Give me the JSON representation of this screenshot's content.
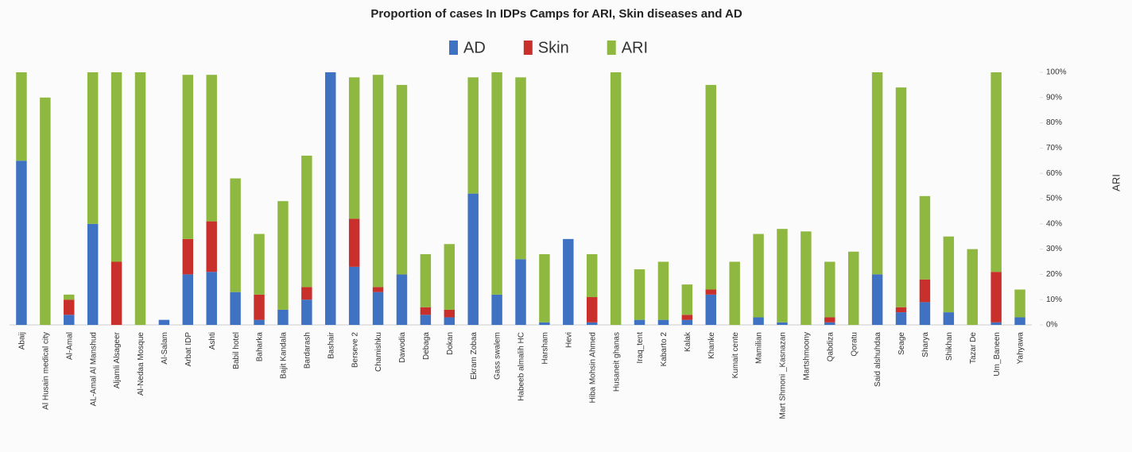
{
  "chart_data": {
    "type": "stacked_bar",
    "title": "Proportion of cases In IDPs Camps for ARI, Skin diseases and AD",
    "ylabel": "ARI",
    "yaxis_side": "right",
    "legend": "top",
    "categories": [
      "Abaij",
      "Al Husain medical city",
      "Al-Amal",
      "AL-Amal Al Manshud",
      "Aljamli Alsageer",
      "Al-Nedaa Mosque",
      "Al-Salam",
      "Arbat IDP",
      "Ashti",
      "Babil hotel",
      "Baharka",
      "Bajit Kandala",
      "Bardarash",
      "Bashair",
      "Berseve 2",
      "Chamishku",
      "Dawodia",
      "Debaga",
      "Dokan",
      "Ekram Zobaa",
      "Gass swalem",
      "Habeeb almalih HC",
      "Harsham",
      "Hevi",
      "Hiba Mohsin Ahmed",
      "Husaneit ghanas",
      "Iraq_tent",
      "Kabarto 2",
      "Kalak",
      "Khanke",
      "Kumait cente",
      "Mamilian",
      "Mart Shmoni _Kasnazan",
      "Martshmoony",
      "Qabdiza",
      "Qoratu",
      "Said alshuhdaa",
      "Seage",
      "Sharya",
      "Shikhan",
      "Tazar De",
      "Um_Baneen",
      "Yahyawa"
    ],
    "series": [
      {
        "name": "AD",
        "color": "#3f72c2",
        "values": [
          65,
          0,
          4,
          40,
          0,
          0,
          2,
          20,
          21,
          13,
          2,
          6,
          10,
          100,
          23,
          13,
          20,
          4,
          3,
          52,
          12,
          26,
          1,
          34,
          1,
          0,
          2,
          2,
          2,
          12,
          0,
          3,
          1,
          0,
          1,
          0,
          20,
          5,
          9,
          5,
          0,
          1,
          3
        ]
      },
      {
        "name": "Skin",
        "color": "#c9302c",
        "values": [
          0,
          0,
          6,
          0,
          25,
          0,
          0,
          14,
          20,
          0,
          10,
          0,
          5,
          0,
          19,
          2,
          0,
          3,
          3,
          0,
          0,
          0,
          0,
          0,
          10,
          0,
          0,
          0,
          2,
          2,
          0,
          0,
          0,
          0,
          2,
          0,
          0,
          2,
          9,
          0,
          0,
          20,
          0
        ]
      },
      {
        "name": "ARI",
        "color": "#8fb840",
        "values": [
          35,
          90,
          2,
          60,
          75,
          100,
          0,
          65,
          58,
          45,
          24,
          43,
          52,
          0,
          56,
          84,
          75,
          21,
          26,
          46,
          88,
          72,
          27,
          0,
          17,
          100,
          20,
          23,
          12,
          81,
          25,
          33,
          37,
          37,
          22,
          29,
          80,
          87,
          33,
          30,
          30,
          79,
          11
        ]
      }
    ],
    "ylim": [
      0,
      100
    ],
    "yticks": [
      {
        "value": 0,
        "label": "0%"
      },
      {
        "value": 10,
        "label": "10%"
      },
      {
        "value": 20,
        "label": "20%"
      },
      {
        "value": 30,
        "label": "30%"
      },
      {
        "value": 40,
        "label": "40%"
      },
      {
        "value": 50,
        "label": "50%"
      },
      {
        "value": 60,
        "label": "60%"
      },
      {
        "value": 70,
        "label": "70%"
      },
      {
        "value": 80,
        "label": "80%"
      },
      {
        "value": 90,
        "label": "90%"
      },
      {
        "value": 100,
        "label": "100%"
      }
    ],
    "grid": false
  }
}
